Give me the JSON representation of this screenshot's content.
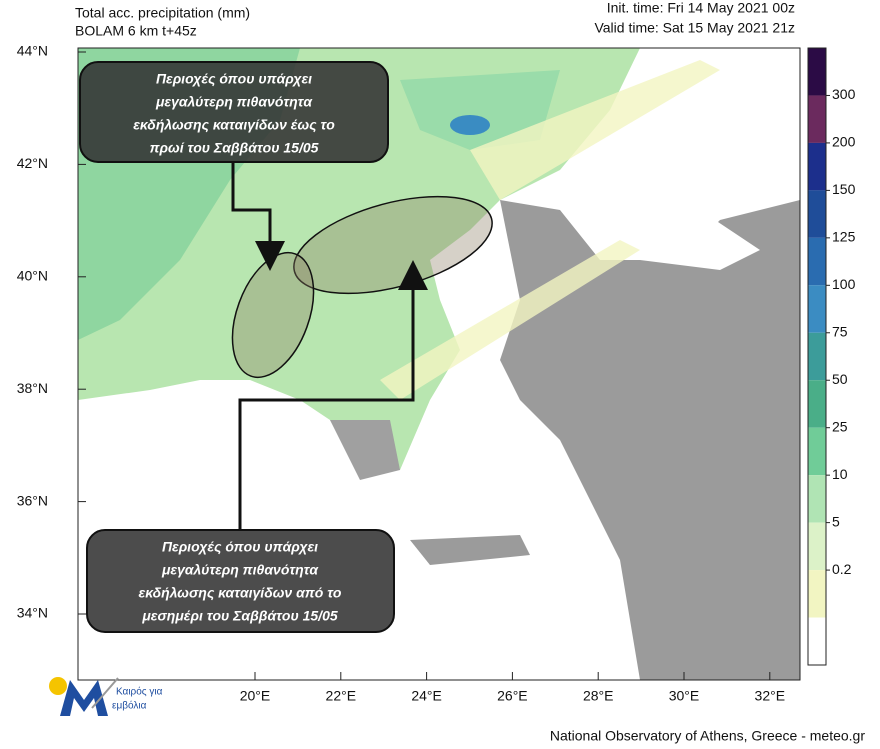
{
  "header": {
    "title": "Total acc. precipitation (mm)",
    "subtitle": "BOLAM 6 km t+45z",
    "init_time": "Init. time: Fri 14 May 2021 00z",
    "valid_time": "Valid time: Sat 15 May 2021 21z"
  },
  "map": {
    "lat_ticks": [
      {
        "value": 44,
        "label": "44°N"
      },
      {
        "value": 42,
        "label": "42°N"
      },
      {
        "value": 40,
        "label": "40°N"
      },
      {
        "value": 38,
        "label": "38°N"
      },
      {
        "value": 36,
        "label": "36°N"
      },
      {
        "value": 34,
        "label": "34°N"
      }
    ],
    "lon_ticks": [
      {
        "value": 20,
        "label": "20°E"
      },
      {
        "value": 22,
        "label": "22°E"
      },
      {
        "value": 24,
        "label": "24°E"
      },
      {
        "value": 26,
        "label": "26°E"
      },
      {
        "value": 28,
        "label": "28°E"
      },
      {
        "value": 30,
        "label": "30°E"
      },
      {
        "value": 32,
        "label": "32°E"
      }
    ]
  },
  "colorbar": {
    "ticks": [
      300,
      200,
      150,
      125,
      100,
      75,
      50,
      25,
      10,
      5,
      0.2
    ],
    "colors": [
      "#2b0b45",
      "#6b2a5e",
      "#1c2f8c",
      "#1f4d99",
      "#2a6cb0",
      "#3b8cc2",
      "#3c9c9a",
      "#4aae88",
      "#70cc98",
      "#b0e4b4",
      "#dcf2c8",
      "#f2f5c2",
      "#ffffff"
    ]
  },
  "annotations": [
    {
      "lines": [
        "Περιοχές όπου υπάρχει",
        "μεγαλύτερη πιθανότητα",
        "εκδήλωσης καταιγίδων  έως το",
        "πρωί του Σαββάτου 15/05"
      ]
    },
    {
      "lines": [
        "Περιοχές όπου υπάρχει",
        "μεγαλύτερη πιθανότητα",
        "εκδήλωσης καταιγίδων από το",
        "μεσημέρι του Σαββάτου 15/05"
      ]
    }
  ],
  "logo": {
    "lines": [
      "Καιρός για",
      "εμβόλια"
    ]
  },
  "footer": "National Observatory of Athens, Greece - meteo.gr"
}
